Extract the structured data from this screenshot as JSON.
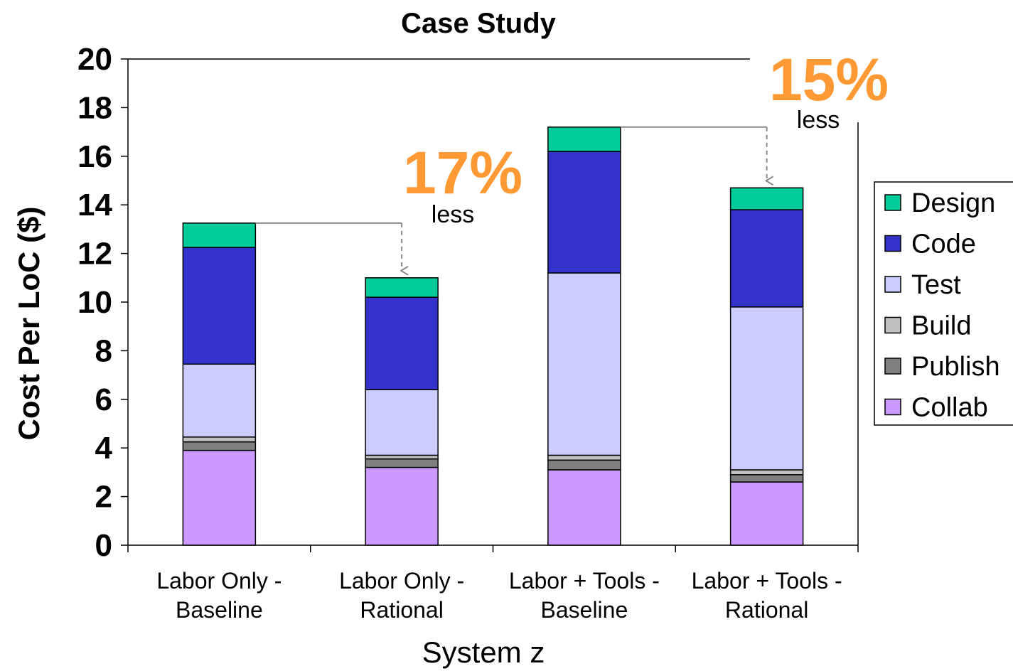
{
  "chart_data": {
    "type": "bar",
    "stacked": true,
    "title": "Case Study",
    "xlabel": "System z",
    "ylabel": "Cost Per LoC ($)",
    "ylim": [
      0,
      20
    ],
    "yticks": [
      0,
      2,
      4,
      6,
      8,
      10,
      12,
      14,
      16,
      18,
      20
    ],
    "grid": false,
    "legend_position": "right",
    "categories": [
      [
        "Labor Only -",
        "Baseline"
      ],
      [
        "Labor Only -",
        "Rational"
      ],
      [
        "Labor + Tools -",
        "Baseline"
      ],
      [
        "Labor + Tools -",
        "Rational"
      ]
    ],
    "series": [
      {
        "name": "Collab",
        "color": "#cc99ff",
        "values": [
          3.9,
          3.2,
          3.1,
          2.6
        ]
      },
      {
        "name": "Publish",
        "color": "#808080",
        "values": [
          0.35,
          0.35,
          0.4,
          0.3
        ]
      },
      {
        "name": "Build",
        "color": "#c0c0c0",
        "values": [
          0.2,
          0.15,
          0.2,
          0.2
        ]
      },
      {
        "name": "Test",
        "color": "#ccccff",
        "values": [
          3.0,
          2.7,
          7.5,
          6.7
        ]
      },
      {
        "name": "Code",
        "color": "#3333cc",
        "values": [
          4.8,
          3.8,
          5.0,
          4.0
        ]
      },
      {
        "name": "Design",
        "color": "#00cc99",
        "values": [
          1.0,
          0.8,
          1.0,
          0.9
        ]
      }
    ],
    "legend_order": [
      "Design",
      "Code",
      "Test",
      "Build",
      "Publish",
      "Collab"
    ],
    "annotations": [
      {
        "from": 0,
        "to": 1,
        "pct": "17%",
        "text": "less",
        "color": "#ff9933"
      },
      {
        "from": 2,
        "to": 3,
        "pct": "15%",
        "text": "less",
        "color": "#ff9933"
      }
    ]
  }
}
